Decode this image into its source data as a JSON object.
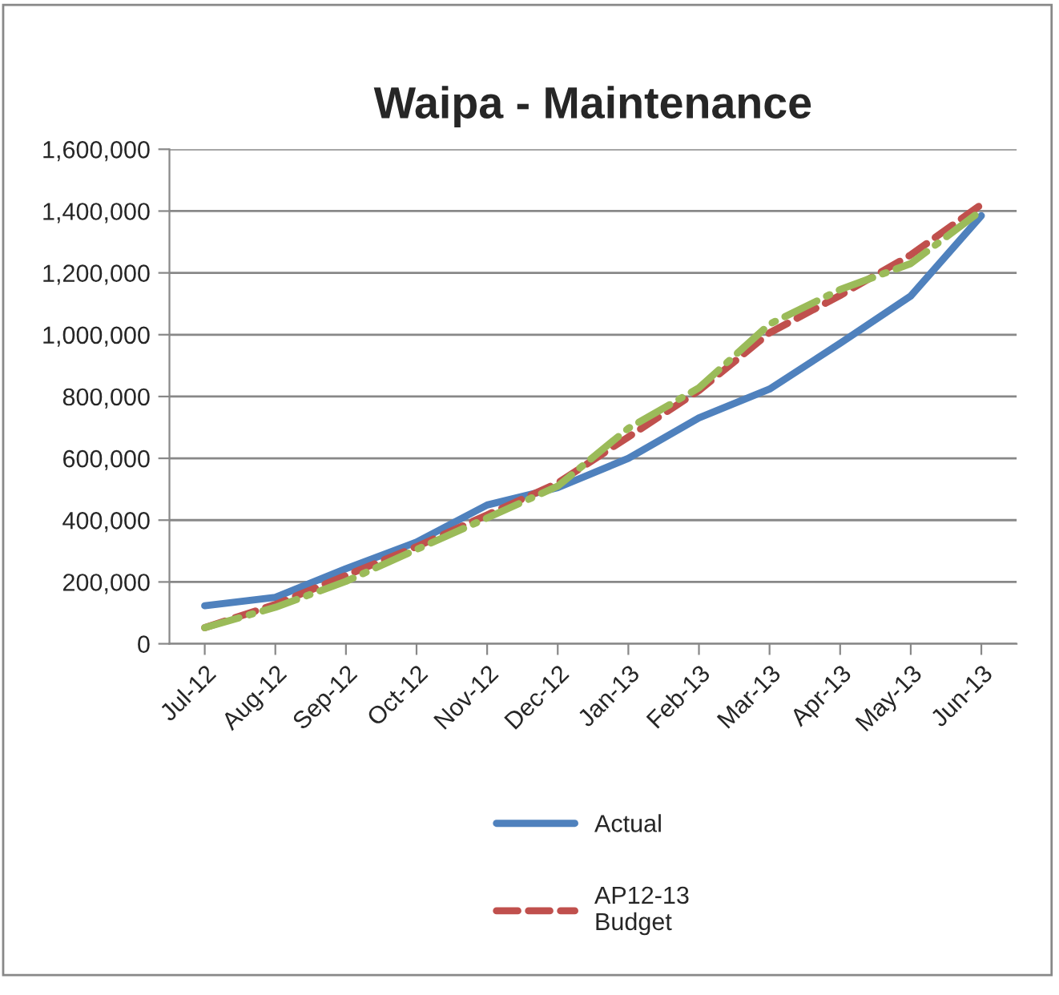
{
  "chart_data": {
    "type": "line",
    "title": "Waipa - Maintenance",
    "categories": [
      "Jul-12",
      "Aug-12",
      "Sep-12",
      "Oct-12",
      "Nov-12",
      "Dec-12",
      "Jan-13",
      "Feb-13",
      "Mar-13",
      "Apr-13",
      "May-13",
      "Jun-13"
    ],
    "series": [
      {
        "name": "Actual",
        "color": "#4f81bd",
        "line_style": "solid",
        "values": [
          123000,
          150000,
          243000,
          329000,
          449000,
          505000,
          600000,
          731000,
          824000,
          972000,
          1125000,
          1385000
        ]
      },
      {
        "name": "AP12-13\nBudget",
        "color": "#c0504d",
        "line_style": "dashed",
        "values": [
          52000,
          127000,
          221000,
          314000,
          417000,
          520000,
          669000,
          819000,
          1006000,
          1127000,
          1258000,
          1421000
        ]
      },
      {
        "color": "#9bbb59",
        "line_style": "dashdot",
        "values": [
          52000,
          118000,
          202000,
          305000,
          407000,
          510000,
          697000,
          828000,
          1034000,
          1146000,
          1230000,
          1402000
        ]
      }
    ],
    "ylim": [
      0,
      1600000
    ],
    "yticks": [
      {
        "value": 0,
        "label": "0"
      },
      {
        "value": 200000,
        "label": "200,000"
      },
      {
        "value": 400000,
        "label": "400,000"
      },
      {
        "value": 600000,
        "label": "600,000"
      },
      {
        "value": 800000,
        "label": "800,000"
      },
      {
        "value": 1000000,
        "label": "1,000,000"
      },
      {
        "value": 1200000,
        "label": "1,200,000"
      },
      {
        "value": 1400000,
        "label": "1,400,000"
      },
      {
        "value": 1600000,
        "label": "1,600,000"
      }
    ],
    "grid": "y",
    "legend": "bottom",
    "marker": "none"
  }
}
